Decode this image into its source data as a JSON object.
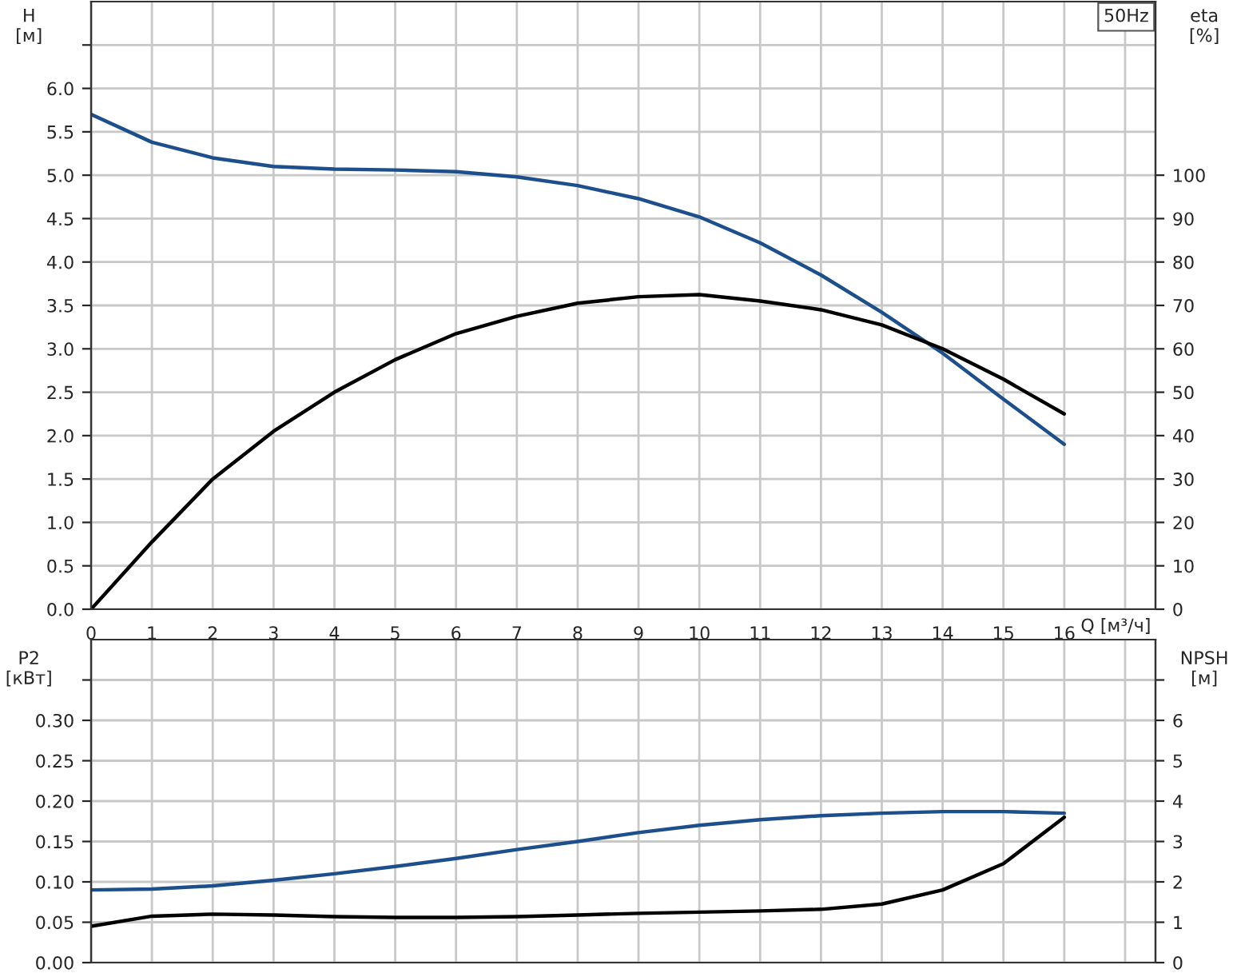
{
  "chart_data": [
    {
      "type": "line",
      "ylabel": "H\n[м]",
      "y2label": "eta\n[%]",
      "xlabel": "Q [м³/ч]",
      "annotations": [
        "50Hz"
      ],
      "x": [
        0,
        1,
        2,
        3,
        4,
        5,
        6,
        7,
        8,
        9,
        10,
        11,
        12,
        13,
        14,
        15,
        16
      ],
      "series": [
        {
          "color": "#1c4f8c",
          "values": [
            5.7,
            5.38,
            5.2,
            5.1,
            5.07,
            5.06,
            5.04,
            4.98,
            4.88,
            4.73,
            4.52,
            4.22,
            3.85,
            3.42,
            2.95,
            2.42,
            1.9
          ]
        },
        {
          "color": "#000000",
          "axis": "y2",
          "values": [
            0,
            15.5,
            30,
            41,
            50,
            57.5,
            63.5,
            67.5,
            70.5,
            72,
            72.5,
            71,
            69,
            65.5,
            60,
            53,
            45
          ]
        }
      ],
      "xlim": [
        0,
        17.5
      ],
      "xticks": [
        0,
        1,
        2,
        3,
        4,
        5,
        6,
        7,
        8,
        9,
        10,
        11,
        12,
        13,
        14,
        15,
        16,
        {
          "value": 17,
          "label": null
        }
      ],
      "ylim": [
        0,
        7.0
      ],
      "yticks": [
        {
          "value": 0,
          "label": "0.0"
        },
        0.5,
        {
          "value": 1,
          "label": "1.0"
        },
        1.5,
        {
          "value": 2,
          "label": "2.0"
        },
        2.5,
        {
          "value": 3,
          "label": "3.0"
        },
        3.5,
        {
          "value": 4,
          "label": "4.0"
        },
        4.5,
        {
          "value": 5,
          "label": "5.0"
        },
        5.5,
        {
          "value": 6,
          "label": "6.0"
        },
        {
          "value": 6.5,
          "label": null
        }
      ],
      "y2lim": [
        0,
        140
      ],
      "y2ticks": [
        0,
        10,
        20,
        30,
        40,
        50,
        60,
        70,
        80,
        90,
        100
      ],
      "grid": true
    },
    {
      "type": "line",
      "ylabel": "P2\n[кВт]",
      "y2label": "NPSH\n[м]",
      "x": [
        0,
        1,
        2,
        3,
        4,
        5,
        6,
        7,
        8,
        9,
        10,
        11,
        12,
        13,
        14,
        15,
        16
      ],
      "series": [
        {
          "color": "#1c4f8c",
          "values": [
            0.09,
            0.091,
            0.095,
            0.102,
            0.11,
            0.119,
            0.129,
            0.14,
            0.15,
            0.161,
            0.17,
            0.177,
            0.182,
            0.185,
            0.187,
            0.187,
            0.185
          ]
        },
        {
          "color": "#000000",
          "axis": "y2",
          "values": [
            0.9,
            1.15,
            1.2,
            1.18,
            1.14,
            1.12,
            1.12,
            1.14,
            1.18,
            1.22,
            1.25,
            1.28,
            1.32,
            1.45,
            1.8,
            2.45,
            3.6
          ]
        }
      ],
      "xlim": [
        0,
        17.5
      ],
      "xticks": [
        0,
        1,
        2,
        3,
        4,
        5,
        6,
        7,
        8,
        9,
        10,
        11,
        12,
        13,
        14,
        15,
        16,
        17
      ],
      "ylim": [
        0,
        0.4
      ],
      "yticks": [
        {
          "value": 0,
          "label": "0.00"
        },
        {
          "value": 0.05,
          "label": "0.05"
        },
        {
          "value": 0.1,
          "label": "0.10"
        },
        {
          "value": 0.15,
          "label": "0.15"
        },
        {
          "value": 0.2,
          "label": "0.20"
        },
        {
          "value": 0.25,
          "label": "0.25"
        },
        {
          "value": 0.3,
          "label": "0.30"
        },
        {
          "value": 0.35,
          "label": null
        }
      ],
      "y2lim": [
        0,
        8
      ],
      "y2ticks": [
        0,
        1,
        2,
        3,
        4,
        5,
        6,
        {
          "value": 7,
          "label": null
        }
      ],
      "tick_labels": "y",
      "grid": true
    }
  ]
}
